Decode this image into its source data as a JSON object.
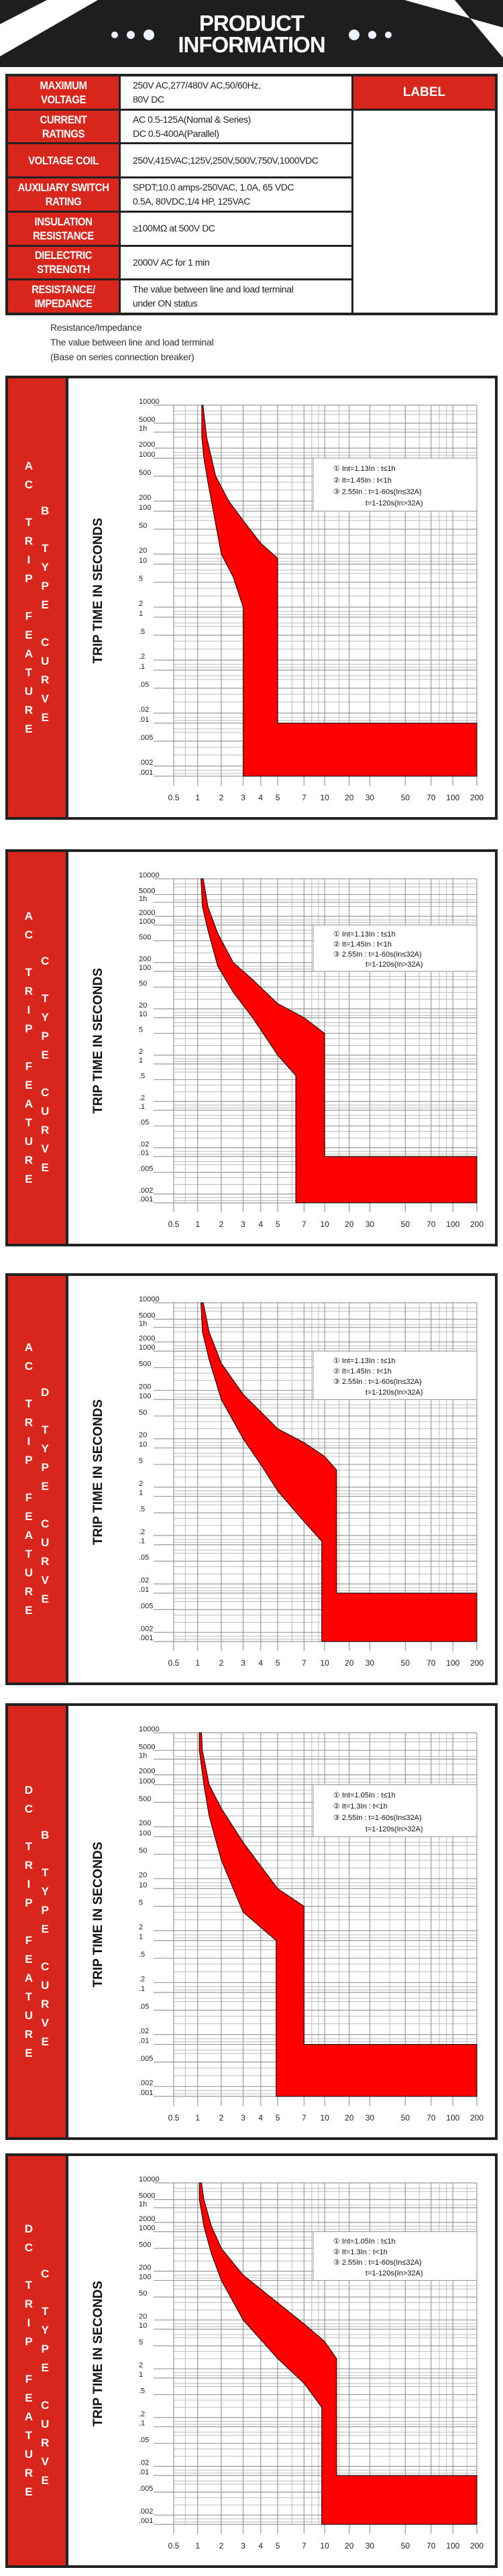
{
  "header": {
    "title_line1": "PRODUCT",
    "title_line2": "INFORMATION"
  },
  "spec_table": {
    "label_header": "LABEL",
    "rows": [
      {
        "label": [
          "MAXIMUM",
          "VOLTAGE"
        ],
        "value": [
          "250V AC,277/480V AC,50/60Hz,",
          "80V DC"
        ]
      },
      {
        "label": [
          "CURRENT",
          "RATINGS"
        ],
        "value": [
          "AC 0.5-125A(Nomal & Series)",
          "DC 0.5-400A(Parallel)"
        ]
      },
      {
        "label": [
          "VOLTAGE COIL"
        ],
        "value": [
          "250V,415VAC;125V,250V,500V,750V,1000VDC"
        ]
      },
      {
        "label": [
          "AUXILIARY SWITCH",
          "RATING"
        ],
        "value": [
          "SPDT;10.0 amps-250VAC, 1.0A, 65 VDC",
          "0.5A, 80VDC,1/4 HP, 125VAC"
        ]
      },
      {
        "label": [
          "INSULATION",
          "RESISTANCE"
        ],
        "value": [
          "≥100MΩ at 500V DC"
        ]
      },
      {
        "label": [
          "DIELECTRIC",
          "STRENGTH"
        ],
        "value": [
          "2000V AC for 1 min"
        ]
      },
      {
        "label": [
          "RESISTANCE/",
          "IMPEDANCE"
        ],
        "value": [
          "The value between line and load terminal",
          "under ON status"
        ]
      }
    ]
  },
  "notes": [
    "Resistance/Impedance",
    "The value between line and load terminal",
    "(Base on series connection breaker)"
  ],
  "colors": {
    "side_red": "#d9261c",
    "band_red": "#ff0000",
    "frame": "#222222",
    "grid": "#999999"
  },
  "chart_data": [
    {
      "type": "area",
      "side_label": [
        "AC TRIP FEATURE",
        "B TYPE CURVE"
      ],
      "ylabel": "TRIP TIME IN SECONDS",
      "x_scale": "log",
      "y_scale": "log",
      "grid": true,
      "legend_placement": "top-right",
      "xlim": [
        0.5,
        200
      ],
      "ylim": [
        0.001,
        10000
      ],
      "x_ticks": [
        "0.5",
        "1",
        "2",
        "3",
        "4",
        "5",
        "7",
        "10",
        "20",
        "30",
        "50",
        "70",
        "100",
        "200"
      ],
      "y_ticks": [
        "10000",
        "5000",
        "1h",
        "2000",
        "1000",
        "500",
        "200",
        "100",
        "50",
        "20",
        "10",
        "5",
        "2",
        "1",
        ".5",
        ".2",
        ".1",
        ".05",
        ".02",
        ".01",
        ".005",
        ".002",
        ".001"
      ],
      "legend": [
        "① Int=1.13In : t≤1h",
        "② It=1.45In : t<1h",
        "③ 2.55In : t=1-60s(In≤32A)",
        "t=1-120s(In>32A)"
      ],
      "lower_boundary": [
        [
          1.13,
          10000
        ],
        [
          1.13,
          3000
        ],
        [
          1.2,
          1000
        ],
        [
          1.35,
          400
        ],
        [
          1.7,
          60
        ],
        [
          2,
          20
        ],
        [
          2.5,
          6
        ],
        [
          3,
          2
        ],
        [
          3,
          0.001
        ]
      ],
      "upper_boundary": [
        [
          1.17,
          10000
        ],
        [
          1.3,
          3000
        ],
        [
          1.7,
          500
        ],
        [
          2.3,
          200
        ],
        [
          3,
          70
        ],
        [
          4,
          30
        ],
        [
          5,
          15
        ],
        [
          5,
          0.01
        ],
        [
          200,
          0.01
        ],
        [
          200,
          0.001
        ]
      ]
    },
    {
      "type": "area",
      "side_label": [
        "AC TRIP FEATURE",
        "C TYPE CURVE"
      ],
      "ylabel": "TRIP TIME IN SECONDS",
      "x_scale": "log",
      "y_scale": "log",
      "grid": true,
      "legend_placement": "top-right",
      "xlim": [
        0.5,
        200
      ],
      "ylim": [
        0.001,
        10000
      ],
      "x_ticks": [
        "0.5",
        "1",
        "2",
        "3",
        "4",
        "5",
        "7",
        "10",
        "20",
        "30",
        "50",
        "70",
        "100",
        "200"
      ],
      "y_ticks": [
        "10000",
        "5000",
        "1h",
        "2000",
        "1000",
        "500",
        "200",
        "100",
        "50",
        "20",
        "10",
        "5",
        "2",
        "1",
        ".5",
        ".2",
        ".1",
        ".05",
        ".02",
        ".01",
        ".005",
        ".002",
        ".001"
      ],
      "legend": [
        "① Int=1.13In : t≤1h",
        "② It=1.45In : t<1h",
        "③ 2.55In : t=1-60s(In≤32A)",
        "t=1-120s(In>32A)"
      ],
      "lower_boundary": [
        [
          1.1,
          10000
        ],
        [
          1.15,
          3000
        ],
        [
          1.35,
          800
        ],
        [
          1.8,
          150
        ],
        [
          2.5,
          40
        ],
        [
          3.5,
          10
        ],
        [
          5,
          2
        ],
        [
          6.3,
          0.6
        ],
        [
          6.3,
          0.001
        ]
      ],
      "upper_boundary": [
        [
          1.18,
          10000
        ],
        [
          1.35,
          3000
        ],
        [
          1.8,
          700
        ],
        [
          2.5,
          200
        ],
        [
          3.5,
          70
        ],
        [
          5,
          25
        ],
        [
          7,
          10
        ],
        [
          10,
          5
        ],
        [
          10,
          0.01
        ],
        [
          200,
          0.01
        ],
        [
          200,
          0.001
        ]
      ]
    },
    {
      "type": "area",
      "side_label": [
        "AC TRIP FEATURE",
        "D TYPE CURVE"
      ],
      "ylabel": "TRIP TIME IN SECONDS",
      "x_scale": "log",
      "y_scale": "log",
      "grid": true,
      "legend_placement": "top-right",
      "xlim": [
        0.5,
        200
      ],
      "ylim": [
        0.001,
        10000
      ],
      "x_ticks": [
        "0.5",
        "1",
        "2",
        "3",
        "4",
        "5",
        "7",
        "10",
        "20",
        "30",
        "50",
        "70",
        "100",
        "200"
      ],
      "y_ticks": [
        "10000",
        "5000",
        "1h",
        "2000",
        "1000",
        "500",
        "200",
        "100",
        "50",
        "20",
        "10",
        "5",
        "2",
        "1",
        ".5",
        ".2",
        ".1",
        ".05",
        ".02",
        ".01",
        ".005",
        ".002",
        ".001"
      ],
      "legend": [
        "① Int=1.13In : t≤1h",
        "② It=1.45In : t<1h",
        "③ 2.55In : t=1-60s(In≤32A)",
        "t=1-120s(In>32A)"
      ],
      "lower_boundary": [
        [
          1.1,
          10000
        ],
        [
          1.15,
          3000
        ],
        [
          1.4,
          700
        ],
        [
          2,
          100
        ],
        [
          3,
          20
        ],
        [
          4,
          5
        ],
        [
          5,
          1.5
        ],
        [
          7,
          0.35
        ],
        [
          9.5,
          0.13
        ],
        [
          9.5,
          0.001
        ]
      ],
      "upper_boundary": [
        [
          1.18,
          10000
        ],
        [
          1.4,
          3000
        ],
        [
          2,
          600
        ],
        [
          3,
          150
        ],
        [
          4,
          60
        ],
        [
          5,
          30
        ],
        [
          7,
          15
        ],
        [
          10,
          7
        ],
        [
          14,
          4
        ],
        [
          14,
          0.01
        ],
        [
          200,
          0.01
        ],
        [
          200,
          0.001
        ]
      ]
    },
    {
      "type": "area",
      "side_label": [
        "DC TRIP FEATURE",
        "B TYPE CURVE"
      ],
      "ylabel": "TRIP TIME IN SECONDS",
      "x_scale": "log",
      "y_scale": "log",
      "grid": true,
      "legend_placement": "top-right",
      "xlim": [
        0.5,
        200
      ],
      "ylim": [
        0.001,
        10000
      ],
      "x_ticks": [
        "0.5",
        "1",
        "2",
        "3",
        "4",
        "5",
        "7",
        "10",
        "20",
        "30",
        "50",
        "70",
        "100",
        "200"
      ],
      "y_ticks": [
        "10000",
        "5000",
        "1h",
        "2000",
        "1000",
        "500",
        "200",
        "100",
        "50",
        "20",
        "10",
        "5",
        "2",
        "1",
        ".5",
        ".2",
        ".1",
        ".05",
        ".02",
        ".01",
        ".005",
        ".002",
        ".001"
      ],
      "legend": [
        "① Int=1.05In : t≤1h",
        "② It=1.3In : t<1h",
        "③ 2.55In : t=1-60s(In≤32A)",
        "t=1-120s(In>32A)"
      ],
      "lower_boundary": [
        [
          1.05,
          10000
        ],
        [
          1.05,
          5000
        ],
        [
          1.2,
          1000
        ],
        [
          1.4,
          300
        ],
        [
          2,
          40
        ],
        [
          3,
          4
        ],
        [
          4.9,
          1
        ],
        [
          4.9,
          0.001
        ]
      ],
      "upper_boundary": [
        [
          1.12,
          10000
        ],
        [
          1.15,
          5000
        ],
        [
          1.4,
          1000
        ],
        [
          2,
          400
        ],
        [
          3,
          80
        ],
        [
          5,
          10
        ],
        [
          7,
          5
        ],
        [
          7,
          0.01
        ],
        [
          200,
          0.01
        ],
        [
          200,
          0.001
        ]
      ]
    },
    {
      "type": "area",
      "side_label": [
        "DC TRIP FEATURE",
        "C TYPE CURVE"
      ],
      "ylabel": "TRIP TIME IN SECONDS",
      "x_scale": "log",
      "y_scale": "log",
      "grid": true,
      "legend_placement": "top-right",
      "xlim": [
        0.5,
        200
      ],
      "ylim": [
        0.001,
        10000
      ],
      "x_ticks": [
        "0.5",
        "1",
        "2",
        "3",
        "4",
        "5",
        "7",
        "10",
        "20",
        "30",
        "50",
        "70",
        "100",
        "200"
      ],
      "y_ticks": [
        "10000",
        "5000",
        "1h",
        "2000",
        "1000",
        "500",
        "200",
        "100",
        "50",
        "20",
        "10",
        "5",
        "2",
        "1",
        ".5",
        ".2",
        ".1",
        ".05",
        ".02",
        ".01",
        ".005",
        ".002",
        ".001"
      ],
      "legend": [
        "① Int=1.05In : t≤1h",
        "② It=1.3In : t<1h",
        "③ 2.55In : t=1-60s(In≤32A)",
        "t=1-120s(In>32A)"
      ],
      "lower_boundary": [
        [
          1.05,
          10000
        ],
        [
          1.05,
          5000
        ],
        [
          1.2,
          1500
        ],
        [
          1.5,
          400
        ],
        [
          2,
          100
        ],
        [
          3,
          20
        ],
        [
          5,
          3
        ],
        [
          7,
          0.8
        ],
        [
          9.5,
          0.3
        ],
        [
          9.5,
          0.001
        ]
      ],
      "upper_boundary": [
        [
          1.12,
          10000
        ],
        [
          1.2,
          5000
        ],
        [
          1.5,
          1500
        ],
        [
          2,
          500
        ],
        [
          3,
          150
        ],
        [
          5,
          40
        ],
        [
          7,
          15
        ],
        [
          10,
          6
        ],
        [
          14,
          3
        ],
        [
          14,
          0.01
        ],
        [
          200,
          0.01
        ],
        [
          200,
          0.001
        ]
      ]
    }
  ]
}
